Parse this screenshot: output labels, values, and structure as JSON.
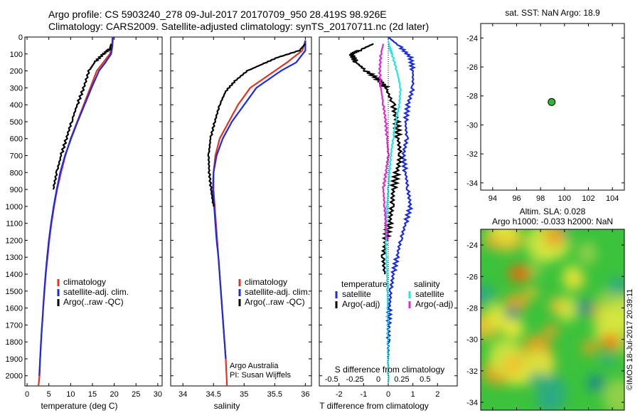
{
  "header": {
    "line1": "Argo profile: CS 5903240_278 09-Jul-2017 20170709_950 28.419S 98.926E",
    "line2": "Climatology: CARS2009. Satellite-adjusted climatology: synTS_20170711.nc (2d later)"
  },
  "stamp": "©IMOS 18-Jul-2017 20:39:11",
  "colors": {
    "red": "#e8301e",
    "blue": "#1a2be8",
    "black": "#000000",
    "cyan": "#22e6e6",
    "magenta": "#e02ad8",
    "marker": "#2eb82e"
  },
  "chart_data": [
    {
      "id": "temperature",
      "type": "line",
      "xlabel": "temperature (deg C)",
      "ylabel": "",
      "xlim": [
        -0.5,
        31
      ],
      "ylim": [
        2060,
        0
      ],
      "xticks": [
        0,
        5,
        10,
        15,
        20,
        25,
        30
      ],
      "yticks": [
        0,
        100,
        200,
        300,
        400,
        500,
        600,
        700,
        800,
        900,
        1000,
        1100,
        1200,
        1300,
        1400,
        1500,
        1600,
        1700,
        1800,
        1900,
        2000
      ],
      "legend": [
        "climatology",
        "satellite-adj. clim.",
        "Argo(..raw -QC)"
      ],
      "series": [
        {
          "name": "climatology",
          "color": "red",
          "x": [
            19.6,
            19.5,
            19.0,
            17.5,
            16.0,
            14.5,
            13.0,
            11.5,
            10.0,
            8.8,
            7.8,
            6.9,
            6.2,
            5.6,
            5.1,
            4.7,
            4.3,
            4.0,
            3.7,
            3.45,
            3.2,
            3.0,
            2.85,
            2.7,
            2.6
          ],
          "y": [
            0,
            50,
            100,
            150,
            200,
            300,
            400,
            500,
            600,
            700,
            800,
            900,
            1000,
            1100,
            1200,
            1300,
            1400,
            1500,
            1600,
            1700,
            1800,
            1900,
            2000,
            2040,
            2060
          ]
        },
        {
          "name": "satellite-adj. clim.",
          "color": "blue",
          "x": [
            19.7,
            19.6,
            19.3,
            18.0,
            16.5,
            14.8,
            13.2,
            11.6,
            10.1,
            8.7,
            7.6,
            6.8,
            6.1,
            5.5,
            5.0,
            4.6,
            4.25,
            3.95,
            3.7,
            3.45,
            3.2,
            3.0,
            2.8
          ],
          "y": [
            0,
            50,
            100,
            150,
            200,
            300,
            400,
            500,
            600,
            700,
            800,
            900,
            1000,
            1100,
            1200,
            1300,
            1400,
            1500,
            1600,
            1700,
            1800,
            1900,
            2000
          ]
        },
        {
          "name": "Argo(..raw -QC)",
          "color": "black",
          "x": [
            19.3,
            19.0,
            17.5,
            15.5,
            14.2,
            13.0,
            11.5,
            10.2,
            9.0,
            7.8,
            6.8,
            6.0
          ],
          "y": [
            40,
            70,
            100,
            150,
            200,
            300,
            400,
            500,
            600,
            700,
            800,
            900
          ]
        }
      ]
    },
    {
      "id": "salinity",
      "type": "line",
      "xlabel": "salinity",
      "ylabel": "",
      "xlim": [
        33.8,
        36.1
      ],
      "ylim": [
        2060,
        0
      ],
      "xticks": [
        34,
        34.5,
        35,
        35.5,
        36
      ],
      "xtick_labels": [
        "34",
        "34.5",
        "35",
        "35.5",
        "36"
      ],
      "legend": [
        "climatology",
        "satellite-adj. clim.",
        "Argo(..raw -QC)"
      ],
      "annotation": [
        "Argo Australia",
        "PI: Susan Wijffels"
      ],
      "series": [
        {
          "name": "climatology",
          "color": "red",
          "x": [
            36.0,
            35.95,
            35.7,
            35.5,
            35.3,
            35.1,
            34.9,
            34.75,
            34.6,
            34.53,
            34.5,
            34.5,
            34.52,
            34.54,
            34.56,
            34.58,
            34.6,
            34.62,
            34.64,
            34.66,
            34.68,
            34.7,
            34.72
          ],
          "y": [
            20,
            80,
            150,
            200,
            250,
            300,
            400,
            500,
            600,
            700,
            800,
            900,
            1000,
            1100,
            1200,
            1300,
            1400,
            1500,
            1600,
            1700,
            1800,
            1900,
            2060
          ]
        },
        {
          "name": "satellite-adj. clim.",
          "color": "blue",
          "x": [
            36.0,
            36.0,
            35.85,
            35.6,
            35.4,
            35.2,
            35.0,
            34.8,
            34.65,
            34.55,
            34.5,
            34.49,
            34.51,
            34.53,
            34.55,
            34.58,
            34.6,
            34.62,
            34.64,
            34.66,
            34.68,
            34.7
          ],
          "y": [
            20,
            80,
            150,
            200,
            250,
            300,
            400,
            500,
            600,
            700,
            800,
            900,
            1000,
            1100,
            1200,
            1300,
            1400,
            1500,
            1600,
            1700,
            1800,
            1900
          ]
        },
        {
          "name": "Argo(..raw -QC)",
          "color": "black",
          "x": [
            36.0,
            35.9,
            35.55,
            35.3,
            35.05,
            34.85,
            34.7,
            34.6,
            34.52,
            34.45,
            34.42,
            34.43,
            34.46,
            34.5
          ],
          "y": [
            40,
            80,
            120,
            160,
            200,
            260,
            320,
            400,
            500,
            600,
            700,
            800,
            900,
            1000
          ]
        }
      ]
    },
    {
      "id": "difference",
      "type": "line",
      "xlabel": "T difference from climatology",
      "x2label": "S difference from climatology",
      "xlim": [
        -2.8,
        2.8
      ],
      "ylim": [
        2060,
        0
      ],
      "xticks": [
        -2,
        -1,
        0,
        1,
        2
      ],
      "x2ticks": [
        -0.5,
        -0.25,
        0,
        0.25,
        0.5
      ],
      "x2tick_labels": [
        "-0.5",
        "-0.25",
        "0",
        "0.25",
        "0.5"
      ],
      "legend_left_title": "temperature",
      "legend_right_title": "salinity",
      "legend": [
        "satellite",
        "Argo(-adj)",
        "satellite",
        "Argo(-adj)"
      ],
      "series": [
        {
          "name": "satellite",
          "group": "temperature",
          "color": "blue",
          "x": [
            0.0,
            0.5,
            0.9,
            1.0,
            1.0,
            0.8,
            0.7,
            0.75,
            0.6,
            0.7,
            0.8,
            0.9,
            0.7,
            0.5,
            0.35,
            0.2,
            0.1,
            0.05,
            0.02,
            0.0,
            0.0
          ],
          "y": [
            0,
            60,
            120,
            200,
            300,
            400,
            500,
            600,
            700,
            800,
            900,
            1000,
            1100,
            1200,
            1300,
            1400,
            1500,
            1600,
            1700,
            1800,
            1900
          ]
        },
        {
          "name": "Argo(-adj)",
          "group": "temperature",
          "color": "black",
          "x": [
            -0.6,
            -1.2,
            -1.5,
            -1.3,
            -0.9,
            -0.4,
            -0.1,
            0.2,
            0.35,
            0.4,
            0.5,
            0.35,
            0.2,
            0.15,
            0.05,
            -0.1,
            -0.2,
            -0.15
          ],
          "y": [
            40,
            80,
            100,
            150,
            200,
            250,
            300,
            400,
            500,
            600,
            700,
            800,
            900,
            1000,
            1100,
            1200,
            1300,
            1400
          ]
        },
        {
          "name": "satellite",
          "group": "salinity",
          "color": "cyan",
          "x": [
            0.0,
            0.05,
            0.15,
            0.35,
            0.5,
            0.45,
            0.3,
            0.2,
            0.1,
            0.05,
            0.0,
            -0.05,
            -0.08,
            -0.1,
            -0.08,
            -0.05,
            -0.03,
            -0.02,
            -0.01,
            0.0
          ],
          "y": [
            20,
            60,
            100,
            200,
            300,
            400,
            500,
            600,
            700,
            800,
            900,
            1000,
            1100,
            1200,
            1300,
            1400,
            1500,
            1600,
            1800,
            2040
          ]
        },
        {
          "name": "Argo(-adj)",
          "group": "salinity",
          "color": "magenta",
          "x": [
            -0.2,
            -0.3,
            -0.35,
            -0.3,
            -0.2,
            -0.1,
            -0.05,
            0.0,
            -0.1,
            -0.2,
            -0.15,
            -0.1,
            -0.05
          ],
          "y": [
            40,
            100,
            200,
            300,
            400,
            500,
            600,
            700,
            800,
            900,
            1000,
            1100,
            1200
          ]
        }
      ]
    },
    {
      "id": "position",
      "type": "scatter",
      "title": "sat. SST: NaN Argo: 18.9",
      "xlim": [
        93,
        105
      ],
      "ylim": [
        -34.5,
        -23
      ],
      "xticks": [
        94,
        96,
        98,
        100,
        102,
        104
      ],
      "yticks": [
        -24,
        -26,
        -28,
        -30,
        -32,
        -34
      ],
      "points": [
        {
          "x": 98.926,
          "y": -28.419
        }
      ]
    },
    {
      "id": "sla",
      "type": "heatmap",
      "title_line1": "Altim. SLA: 0.028",
      "title_line2": "Argo h1000: -0.033 h2000: NaN",
      "xlim": [
        93,
        105
      ],
      "ylim": [
        -34.5,
        -23
      ],
      "xticks": [
        94,
        96,
        98,
        100,
        102,
        104
      ],
      "yticks": [
        -24,
        -26,
        -28,
        -30,
        -32,
        -34
      ]
    }
  ]
}
